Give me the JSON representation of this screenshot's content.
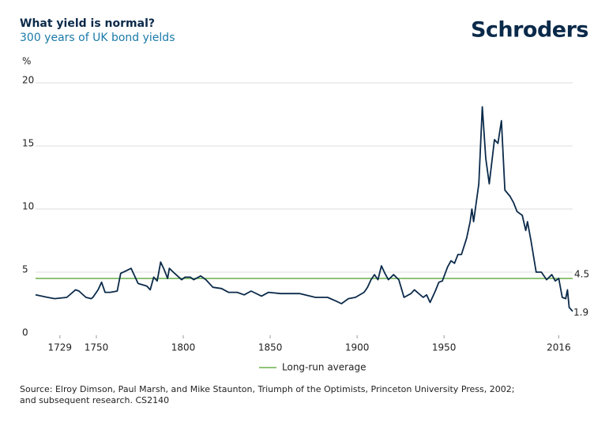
{
  "chart_data": {
    "type": "line",
    "title": "What yield is normal?",
    "subtitle": "300 years of UK bond yields",
    "brand": "Schroders",
    "y_label": "%",
    "source": [
      "Source: Elroy Dimson, Paul Marsh, and Mike Staunton, Triumph of the Optimists, Princeton University Press, 2002;",
      "and subsequent research. CS2140"
    ],
    "x": [
      1715,
      1722,
      1726,
      1733,
      1738,
      1740,
      1744,
      1747,
      1748,
      1751,
      1753,
      1755,
      1758,
      1762,
      1764,
      1767,
      1770,
      1772,
      1774,
      1779,
      1781,
      1783,
      1785,
      1787,
      1789,
      1791,
      1792,
      1795,
      1799,
      1801,
      1804,
      1806,
      1810,
      1813,
      1817,
      1822,
      1826,
      1831,
      1835,
      1839,
      1845,
      1849,
      1856,
      1867,
      1876,
      1883,
      1888,
      1891,
      1895,
      1899,
      1904,
      1906,
      1908,
      1910,
      1912,
      1914,
      1916,
      1918,
      1921,
      1924,
      1927,
      1931,
      1933,
      1938,
      1940,
      1942,
      1945,
      1947,
      1949,
      1952,
      1954,
      1956,
      1958,
      1960,
      1963,
      1965,
      1966,
      1967,
      1970,
      1972,
      1974,
      1976,
      1979,
      1981,
      1983,
      1985,
      1988,
      1990,
      1992,
      1995,
      1997,
      1998,
      2000,
      2003,
      2006,
      2009,
      2012,
      2014,
      2016,
      2018,
      2020,
      2021,
      2022,
      2024
    ],
    "series": [
      {
        "name": "UK bond yield",
        "color": "#0b2a4a",
        "values": [
          3.2,
          3.0,
          2.9,
          3.0,
          3.6,
          3.5,
          3.0,
          2.9,
          3.0,
          3.6,
          4.2,
          3.4,
          3.4,
          3.5,
          4.9,
          5.1,
          5.3,
          4.7,
          4.1,
          3.9,
          3.6,
          4.6,
          4.3,
          5.8,
          5.2,
          4.5,
          5.3,
          4.9,
          4.4,
          4.6,
          4.6,
          4.4,
          4.7,
          4.4,
          3.8,
          3.7,
          3.4,
          3.4,
          3.2,
          3.5,
          3.1,
          3.4,
          3.3,
          3.3,
          3.0,
          3.0,
          2.7,
          2.5,
          2.9,
          3.0,
          3.4,
          3.8,
          4.4,
          4.8,
          4.4,
          5.5,
          4.9,
          4.4,
          4.8,
          4.4,
          3.0,
          3.3,
          3.6,
          3.0,
          3.2,
          2.6,
          3.5,
          4.2,
          4.3,
          5.4,
          5.9,
          5.7,
          6.4,
          6.4,
          7.7,
          9.0,
          10.0,
          9.0,
          12.0,
          18.1,
          14.0,
          12.0,
          15.5,
          15.2,
          17.0,
          11.5,
          11.0,
          10.5,
          9.8,
          9.5,
          8.3,
          9.0,
          7.5,
          5.0,
          5.0,
          4.4,
          4.8,
          4.3,
          4.5,
          3.0,
          2.9,
          3.6,
          2.2,
          1.9
        ]
      }
    ],
    "average": {
      "name": "Long-run average",
      "value": 4.5,
      "color": "#6ab04c"
    },
    "xlim": [
      1715,
      2024
    ],
    "xticks": [
      1729,
      1750,
      1800,
      1850,
      1900,
      1950,
      2016
    ],
    "ylim": [
      0,
      20
    ],
    "yticks": [
      0,
      5,
      10,
      15,
      20
    ],
    "grid": true
  }
}
